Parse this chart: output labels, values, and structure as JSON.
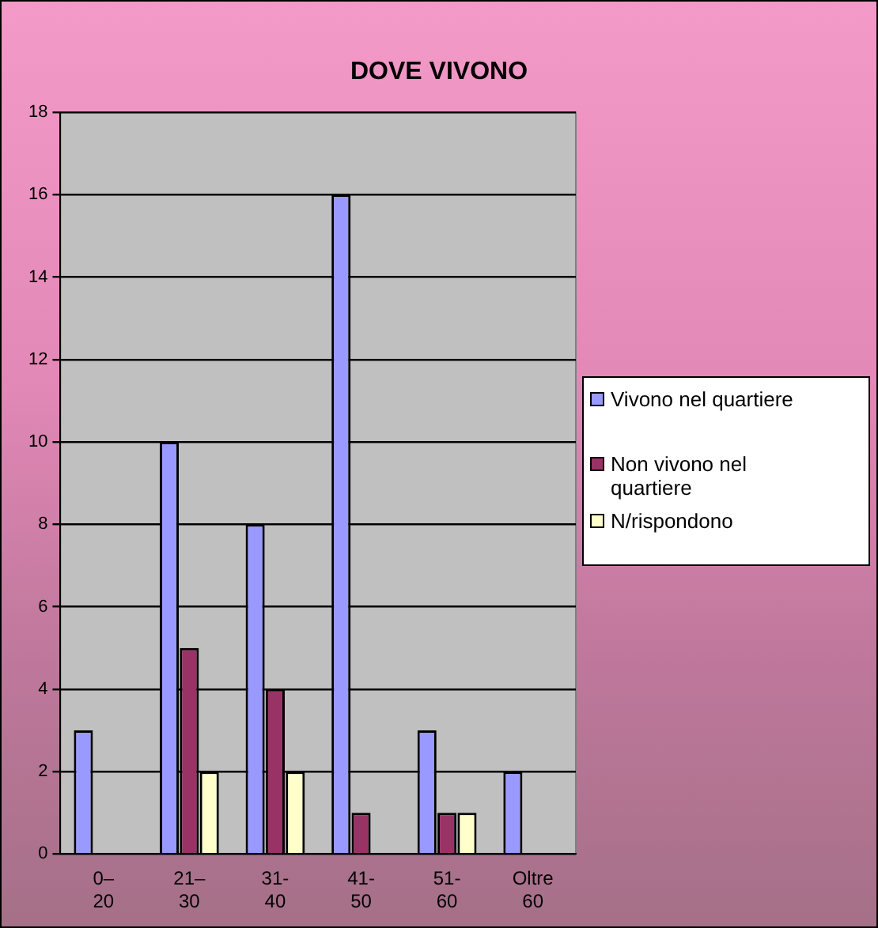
{
  "chart_data": {
    "type": "bar",
    "title": "DOVE VIVONO",
    "categories": [
      "0–20",
      "21–30",
      "31-40",
      "41-50",
      "51-60",
      "Oltre 60"
    ],
    "series": [
      {
        "name": "Vivono nel quartiere",
        "color": "#9999ff",
        "values": [
          3,
          10,
          8,
          16,
          3,
          2
        ]
      },
      {
        "name": "Non vivono nel quartiere",
        "color": "#993366",
        "values": [
          0,
          5,
          4,
          1,
          1,
          0
        ]
      },
      {
        "name": "N/rispondono",
        "color": "#ffffcc",
        "values": [
          0,
          2,
          2,
          0,
          1,
          0
        ]
      }
    ],
    "ylim": [
      0,
      18
    ],
    "yticks": [
      0,
      2,
      4,
      6,
      8,
      10,
      12,
      14,
      16,
      18
    ],
    "grid": "y",
    "legend": "right"
  }
}
